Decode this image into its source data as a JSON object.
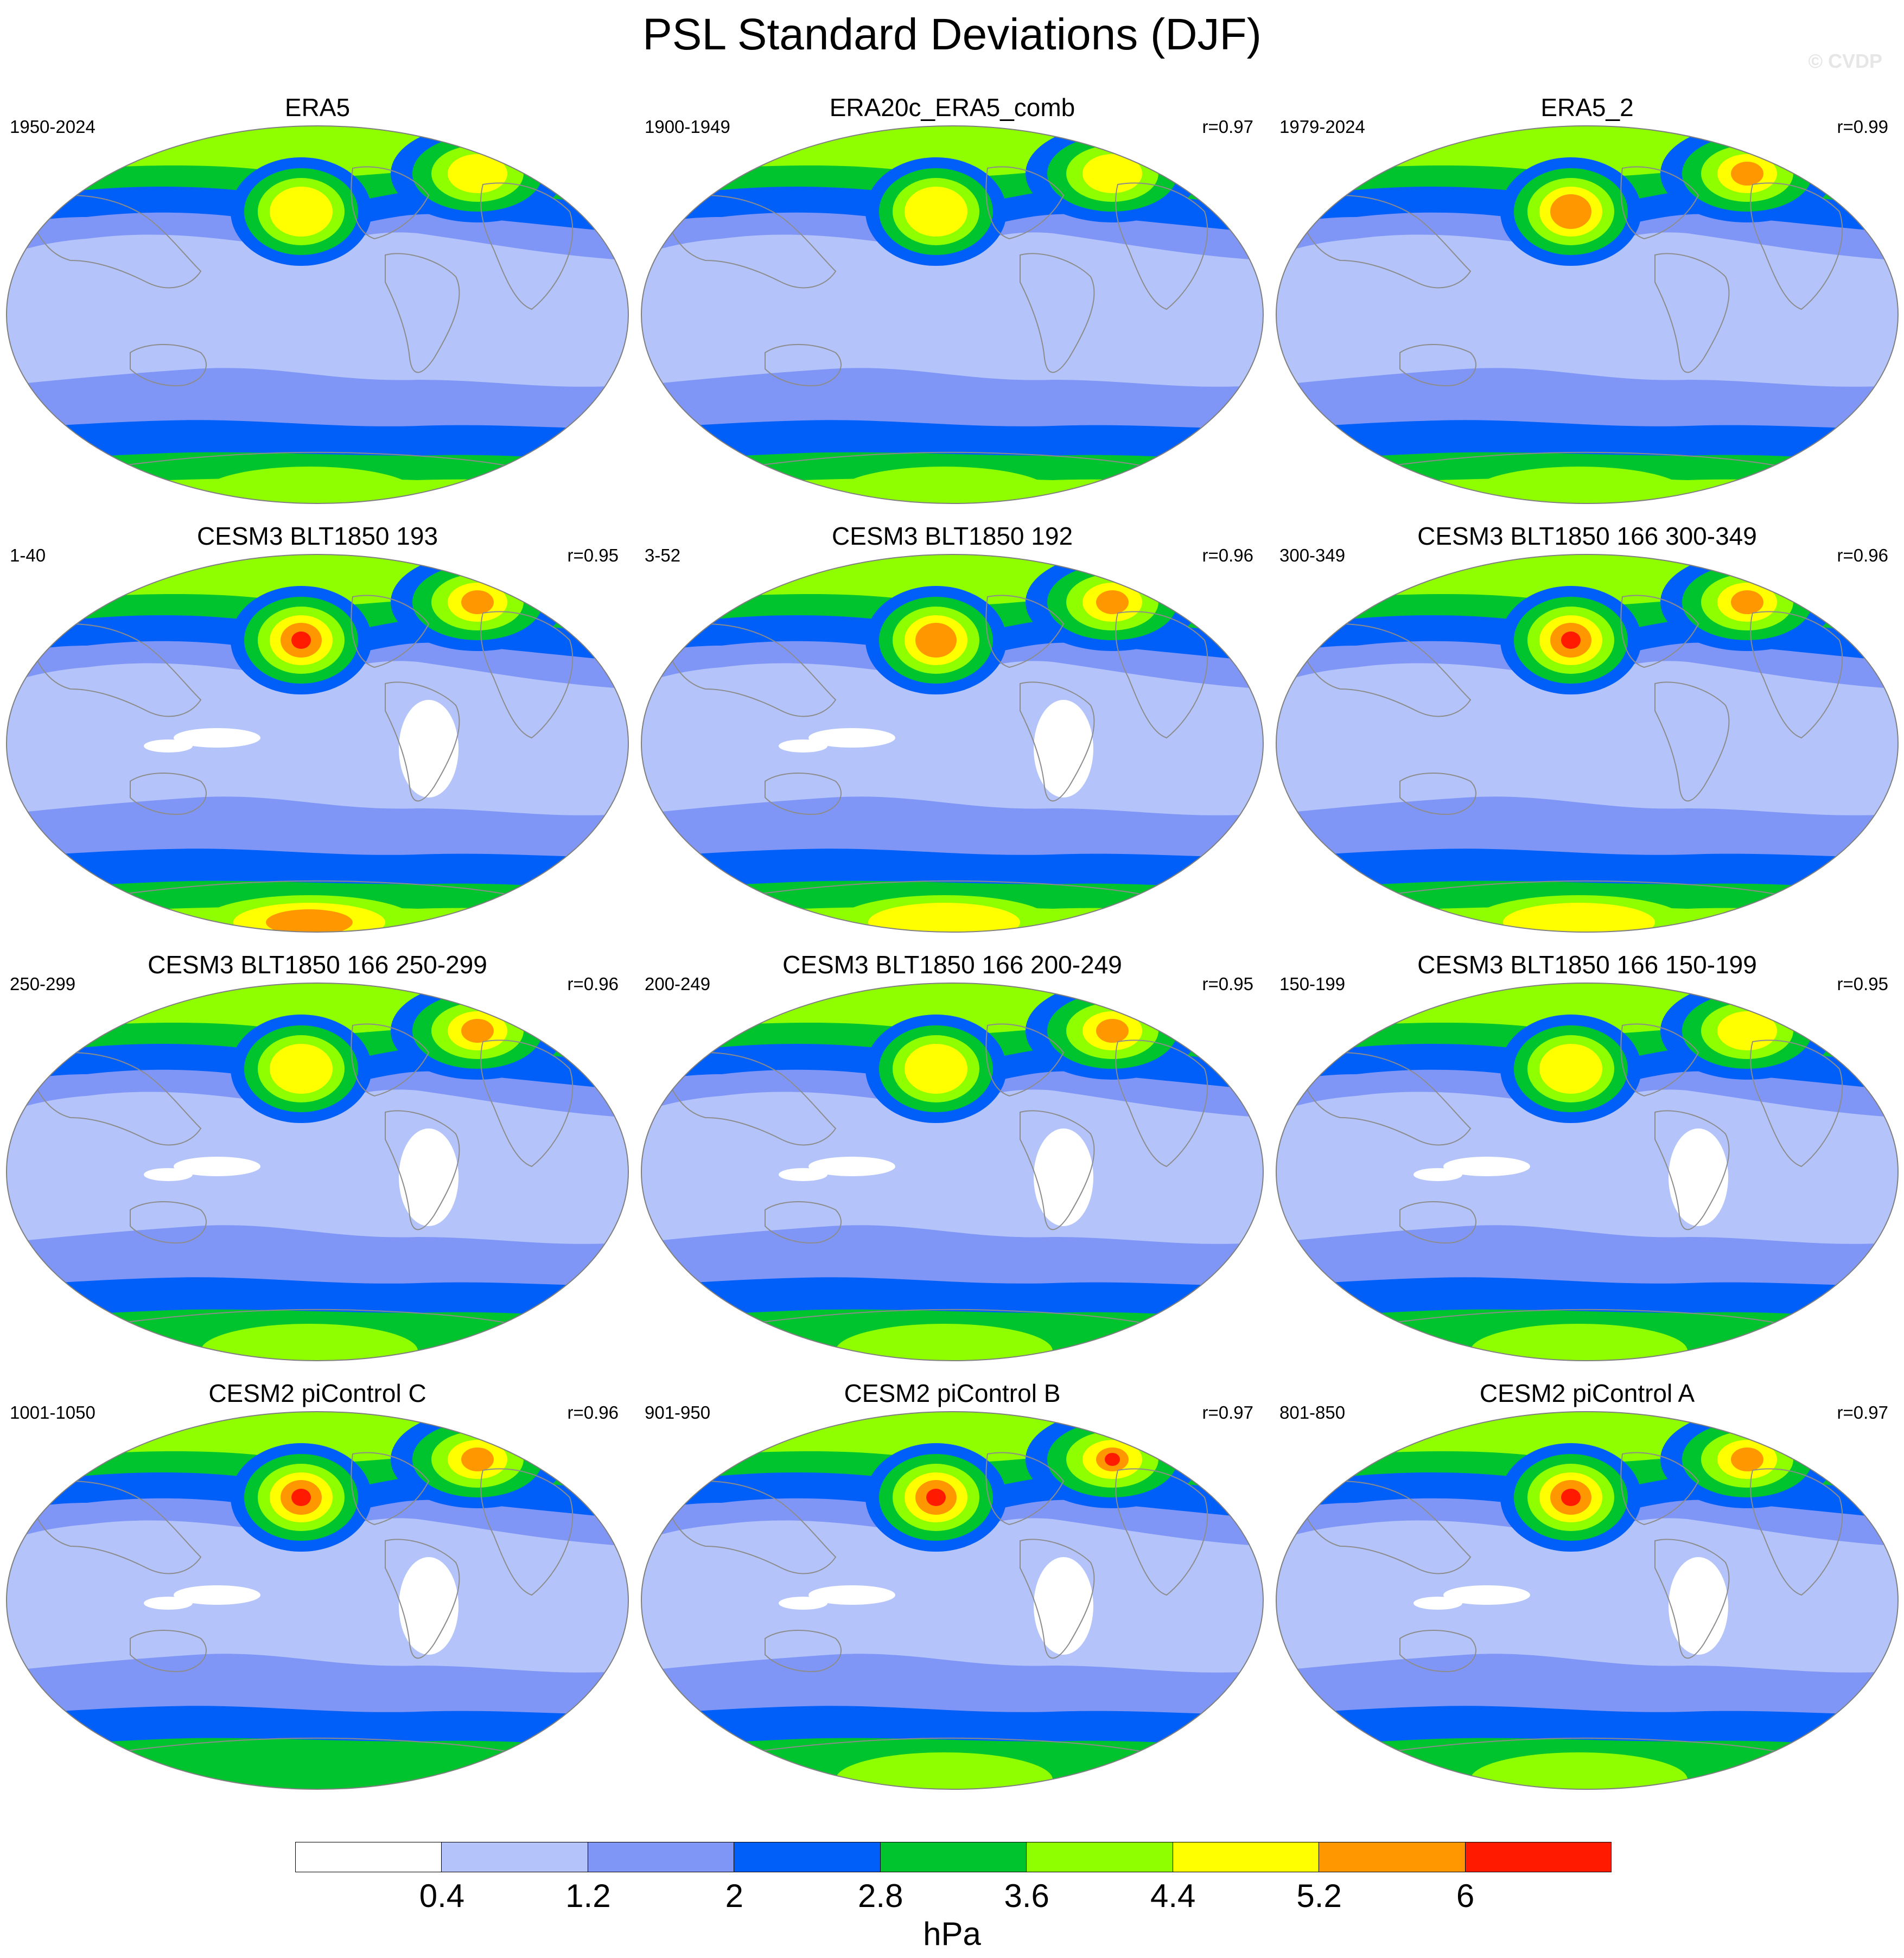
{
  "title": "PSL Standard Deviations (DJF)",
  "watermark": "© CVDP",
  "units": "hPa",
  "colorbar": {
    "colors": [
      "#ffffff",
      "#b4c4fa",
      "#8096f6",
      "#005ff9",
      "#00c42e",
      "#8fff00",
      "#ffff00",
      "#ff9800",
      "#ff1a00"
    ],
    "labels": [
      "0.4",
      "1.2",
      "2",
      "2.8",
      "3.6",
      "4.4",
      "5.2",
      "6"
    ]
  },
  "panels": [
    {
      "title": "ERA5",
      "years": "1950-2024",
      "corr": "",
      "levels": {
        "npac": 6,
        "natl": 6,
        "arctic": 6,
        "sh": 5,
        "ant": 5,
        "trop_white": 0
      }
    },
    {
      "title": "ERA20c_ERA5_comb",
      "years": "1900-1949",
      "corr": "r=0.97",
      "levels": {
        "npac": 6,
        "natl": 6,
        "arctic": 6,
        "sh": 5,
        "ant": 5,
        "trop_white": 0
      }
    },
    {
      "title": "ERA5_2",
      "years": "1979-2024",
      "corr": "r=0.99",
      "levels": {
        "npac": 7,
        "natl": 7,
        "arctic": 7,
        "sh": 5,
        "ant": 5,
        "trop_white": 0
      }
    },
    {
      "title": "CESM3 BLT1850 193",
      "years": "1-40",
      "corr": "r=0.95",
      "levels": {
        "npac": 8,
        "natl": 7,
        "arctic": 8,
        "sh": 5,
        "ant": 7,
        "trop_white": 1
      }
    },
    {
      "title": "CESM3 BLT1850 192",
      "years": "3-52",
      "corr": "r=0.96",
      "levels": {
        "npac": 7,
        "natl": 7,
        "arctic": 6,
        "sh": 5,
        "ant": 6,
        "trop_white": 1
      }
    },
    {
      "title": "CESM3 BLT1850 166 300-349",
      "years": "300-349",
      "corr": "r=0.96",
      "levels": {
        "npac": 8,
        "natl": 7,
        "arctic": 6,
        "sh": 5,
        "ant": 6,
        "trop_white": 0
      }
    },
    {
      "title": "CESM3 BLT1850 166 250-299",
      "years": "250-299",
      "corr": "r=0.96",
      "levels": {
        "npac": 6,
        "natl": 7,
        "arctic": 5,
        "sh": 4,
        "ant": 5,
        "trop_white": 1
      }
    },
    {
      "title": "CESM3 BLT1850 166 200-249",
      "years": "200-249",
      "corr": "r=0.95",
      "levels": {
        "npac": 6,
        "natl": 7,
        "arctic": 6,
        "sh": 4,
        "ant": 5,
        "trop_white": 1
      }
    },
    {
      "title": "CESM3 BLT1850 166 150-199",
      "years": "150-199",
      "corr": "r=0.95",
      "levels": {
        "npac": 6,
        "natl": 6,
        "arctic": 5,
        "sh": 4,
        "ant": 5,
        "trop_white": 1
      }
    },
    {
      "title": "CESM2 piControl C",
      "years": "1001-1050",
      "corr": "r=0.96",
      "levels": {
        "npac": 8,
        "natl": 7,
        "arctic": 8,
        "sh": 4,
        "ant": 4,
        "trop_white": 1
      }
    },
    {
      "title": "CESM2 piControl B",
      "years": "901-950",
      "corr": "r=0.97",
      "levels": {
        "npac": 8,
        "natl": 8,
        "arctic": 8,
        "sh": 4,
        "ant": 5,
        "trop_white": 1
      }
    },
    {
      "title": "CESM2 piControl A",
      "years": "801-850",
      "corr": "r=0.97",
      "levels": {
        "npac": 8,
        "natl": 7,
        "arctic": 8,
        "sh": 4,
        "ant": 5,
        "trop_white": 1
      }
    }
  ]
}
